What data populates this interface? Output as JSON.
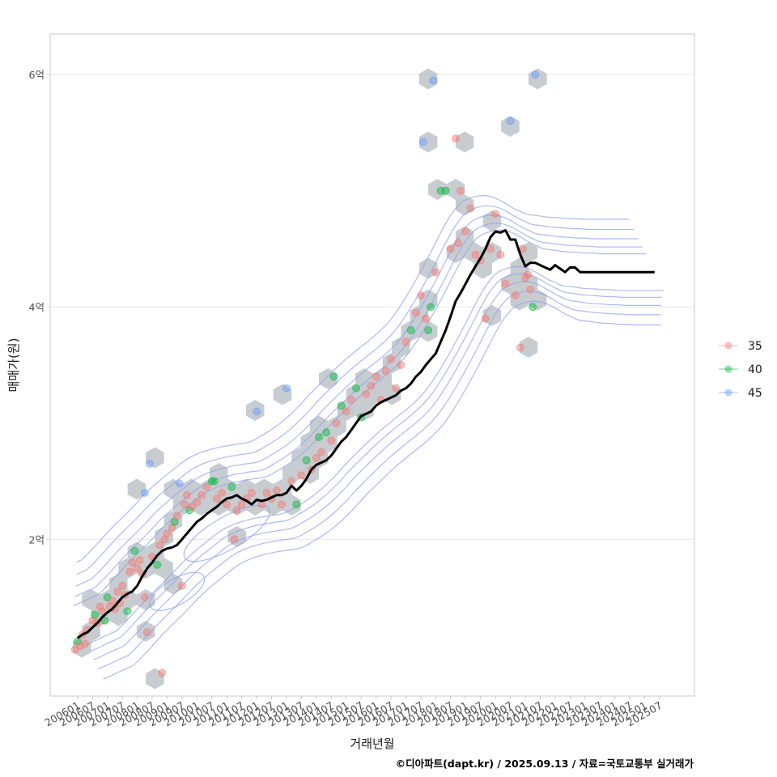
{
  "chart_data": {
    "type": "scatter",
    "title": "",
    "xlabel": "거래년월",
    "ylabel": "매매가(원)",
    "caption": "©디아파트(dapt.kr) / 2025.09.13 / 자료=국토교통부 실거래가",
    "grid": true,
    "y_unit": "억",
    "ylim": [
      0.65,
      6.35
    ],
    "yticks": [
      {
        "value": 2,
        "label": "2억"
      },
      {
        "value": 4,
        "label": "4억"
      },
      {
        "value": 6,
        "label": "6억"
      }
    ],
    "x_start": "2006-01",
    "x_end": "2025-07",
    "xlim_months": [
      -11,
      248
    ],
    "xticks": [
      "200601",
      "200607",
      "200701",
      "200707",
      "200801",
      "200807",
      "200901",
      "200907",
      "201001",
      "201007",
      "201101",
      "201107",
      "201201",
      "201207",
      "201301",
      "201307",
      "201401",
      "201407",
      "201501",
      "201507",
      "201601",
      "201607",
      "201701",
      "201707",
      "201801",
      "201807",
      "201901",
      "201907",
      "202001",
      "202007",
      "202101",
      "202107",
      "202201",
      "202207",
      "202301",
      "202307",
      "202401",
      "202407",
      "202501",
      "202507"
    ],
    "legend": {
      "position": "right",
      "title": "",
      "entries": [
        {
          "label": "35",
          "color": "#F8766D"
        },
        {
          "label": "40",
          "color": "#00BA38"
        },
        {
          "label": "45",
          "color": "#619CFF"
        }
      ]
    },
    "layers": [
      "hexbin-density",
      "2d-density-contours",
      "points-by-size",
      "moving-average-line"
    ],
    "colors": {
      "hex": "#a9b0b8",
      "contour": "#8fa3ee",
      "line": "#000000",
      "grid": "#ebebeb",
      "panel_border": "#c8c8c8"
    },
    "line_series": {
      "name": "moving-average",
      "x_months": [
        0,
        2,
        4,
        6,
        8,
        10,
        12,
        14,
        16,
        18,
        20,
        22,
        24,
        26,
        28,
        30,
        32,
        34,
        36,
        38,
        40,
        42,
        44,
        46,
        48,
        50,
        52,
        54,
        56,
        58,
        60,
        62,
        64,
        66,
        68,
        70,
        72,
        74,
        76,
        78,
        80,
        82,
        84,
        86,
        88,
        90,
        92,
        94,
        96,
        98,
        100,
        102,
        104,
        106,
        108,
        110,
        112,
        114,
        116,
        118,
        120,
        122,
        124,
        126,
        128,
        130,
        132,
        134,
        136,
        138,
        140,
        142,
        144,
        146,
        148,
        150,
        152,
        154,
        156,
        158,
        160,
        162,
        164,
        166,
        168,
        170,
        172,
        174,
        176,
        178,
        180,
        182,
        184,
        186,
        188,
        190,
        192,
        194,
        196,
        198,
        200,
        202,
        204,
        206,
        208,
        210,
        212,
        214,
        216,
        218,
        220,
        222,
        224,
        226,
        228,
        230,
        232,
        234
      ],
      "values": [
        1.15,
        1.18,
        1.2,
        1.24,
        1.28,
        1.33,
        1.37,
        1.4,
        1.45,
        1.5,
        1.53,
        1.55,
        1.6,
        1.68,
        1.75,
        1.8,
        1.86,
        1.9,
        1.92,
        1.93,
        1.95,
        2.0,
        2.05,
        2.1,
        2.15,
        2.18,
        2.22,
        2.25,
        2.28,
        2.32,
        2.35,
        2.36,
        2.38,
        2.35,
        2.33,
        2.3,
        2.34,
        2.33,
        2.34,
        2.36,
        2.38,
        2.38,
        2.4,
        2.46,
        2.42,
        2.46,
        2.52,
        2.6,
        2.64,
        2.66,
        2.68,
        2.72,
        2.78,
        2.84,
        2.88,
        2.94,
        3.0,
        3.06,
        3.08,
        3.1,
        3.15,
        3.18,
        3.2,
        3.22,
        3.24,
        3.28,
        3.3,
        3.34,
        3.4,
        3.44,
        3.5,
        3.55,
        3.6,
        3.7,
        3.8,
        3.92,
        4.05,
        4.12,
        4.2,
        4.28,
        4.35,
        4.42,
        4.5,
        4.6,
        4.65,
        4.64,
        4.66,
        4.58,
        4.58,
        4.45,
        4.35,
        4.38,
        4.38,
        4.36,
        4.34,
        4.32,
        4.36,
        4.33,
        4.3,
        4.34,
        4.34,
        4.3,
        4.3,
        4.3,
        4.3,
        4.3,
        4.3,
        4.3,
        4.3,
        4.3,
        4.3,
        4.3,
        4.3,
        4.3,
        4.3,
        4.3,
        4.3
      ]
    },
    "points": [
      {
        "m": -1,
        "v": 1.05,
        "g": "35"
      },
      {
        "m": 0,
        "v": 1.12,
        "g": "40"
      },
      {
        "m": 1,
        "v": 1.08,
        "g": "35"
      },
      {
        "m": 2,
        "v": 1.18,
        "g": "35"
      },
      {
        "m": 3,
        "v": 1.1,
        "g": "35"
      },
      {
        "m": 4,
        "v": 1.22,
        "g": "35"
      },
      {
        "m": 6,
        "v": 1.3,
        "g": "35"
      },
      {
        "m": 7,
        "v": 1.35,
        "g": "40"
      },
      {
        "m": 8,
        "v": 1.28,
        "g": "35"
      },
      {
        "m": 9,
        "v": 1.42,
        "g": "35"
      },
      {
        "m": 10,
        "v": 1.38,
        "g": "35"
      },
      {
        "m": 11,
        "v": 1.3,
        "g": "40"
      },
      {
        "m": 12,
        "v": 1.5,
        "g": "40"
      },
      {
        "m": 13,
        "v": 1.42,
        "g": "35"
      },
      {
        "m": 14,
        "v": 1.47,
        "g": "35"
      },
      {
        "m": 15,
        "v": 1.4,
        "g": "35"
      },
      {
        "m": 16,
        "v": 1.55,
        "g": "35"
      },
      {
        "m": 17,
        "v": 1.45,
        "g": "35"
      },
      {
        "m": 18,
        "v": 1.6,
        "g": "35"
      },
      {
        "m": 19,
        "v": 1.52,
        "g": "35"
      },
      {
        "m": 20,
        "v": 1.38,
        "g": "40"
      },
      {
        "m": 21,
        "v": 1.72,
        "g": "35"
      },
      {
        "m": 22,
        "v": 1.8,
        "g": "35"
      },
      {
        "m": 23,
        "v": 1.9,
        "g": "40"
      },
      {
        "m": 24,
        "v": 1.75,
        "g": "35"
      },
      {
        "m": 25,
        "v": 1.82,
        "g": "35"
      },
      {
        "m": 26,
        "v": 1.7,
        "g": "35"
      },
      {
        "m": 27,
        "v": 1.5,
        "g": "35"
      },
      {
        "m": 28,
        "v": 1.2,
        "g": "35"
      },
      {
        "m": 29,
        "v": 2.65,
        "g": "45"
      },
      {
        "m": 27,
        "v": 2.4,
        "g": "45"
      },
      {
        "m": 30,
        "v": 1.85,
        "g": "35"
      },
      {
        "m": 32,
        "v": 1.78,
        "g": "40"
      },
      {
        "m": 33,
        "v": 1.95,
        "g": "35"
      },
      {
        "m": 34,
        "v": 0.85,
        "g": "35"
      },
      {
        "m": 35,
        "v": 2.0,
        "g": "35"
      },
      {
        "m": 36,
        "v": 2.05,
        "g": "35"
      },
      {
        "m": 38,
        "v": 2.1,
        "g": "35"
      },
      {
        "m": 39,
        "v": 2.15,
        "g": "40"
      },
      {
        "m": 40,
        "v": 2.2,
        "g": "35"
      },
      {
        "m": 41,
        "v": 2.48,
        "g": "45"
      },
      {
        "m": 42,
        "v": 1.6,
        "g": "35"
      },
      {
        "m": 43,
        "v": 2.3,
        "g": "35"
      },
      {
        "m": 44,
        "v": 2.38,
        "g": "35"
      },
      {
        "m": 45,
        "v": 2.25,
        "g": "40"
      },
      {
        "m": 46,
        "v": 2.28,
        "g": "35"
      },
      {
        "m": 48,
        "v": 2.32,
        "g": "35"
      },
      {
        "m": 50,
        "v": 2.38,
        "g": "35"
      },
      {
        "m": 52,
        "v": 2.45,
        "g": "35"
      },
      {
        "m": 54,
        "v": 2.5,
        "g": "40"
      },
      {
        "m": 55,
        "v": 2.5,
        "g": "40"
      },
      {
        "m": 56,
        "v": 2.35,
        "g": "35"
      },
      {
        "m": 58,
        "v": 2.4,
        "g": "35"
      },
      {
        "m": 60,
        "v": 2.3,
        "g": "35"
      },
      {
        "m": 62,
        "v": 2.45,
        "g": "40"
      },
      {
        "m": 63,
        "v": 2.0,
        "g": "35"
      },
      {
        "m": 64,
        "v": 2.25,
        "g": "35"
      },
      {
        "m": 66,
        "v": 2.3,
        "g": "35"
      },
      {
        "m": 68,
        "v": 2.35,
        "g": "35"
      },
      {
        "m": 70,
        "v": 2.4,
        "g": "35"
      },
      {
        "m": 72,
        "v": 3.1,
        "g": "45"
      },
      {
        "m": 74,
        "v": 2.3,
        "g": "35"
      },
      {
        "m": 76,
        "v": 2.4,
        "g": "35"
      },
      {
        "m": 78,
        "v": 2.35,
        "g": "35"
      },
      {
        "m": 80,
        "v": 2.42,
        "g": "35"
      },
      {
        "m": 82,
        "v": 2.3,
        "g": "35"
      },
      {
        "m": 84,
        "v": 3.3,
        "g": "45"
      },
      {
        "m": 86,
        "v": 2.5,
        "g": "35"
      },
      {
        "m": 88,
        "v": 2.3,
        "g": "40"
      },
      {
        "m": 90,
        "v": 2.55,
        "g": "35"
      },
      {
        "m": 92,
        "v": 2.68,
        "g": "40"
      },
      {
        "m": 94,
        "v": 2.6,
        "g": "35"
      },
      {
        "m": 96,
        "v": 2.7,
        "g": "35"
      },
      {
        "m": 97,
        "v": 2.88,
        "g": "40"
      },
      {
        "m": 98,
        "v": 2.75,
        "g": "35"
      },
      {
        "m": 100,
        "v": 2.92,
        "g": "40"
      },
      {
        "m": 102,
        "v": 2.85,
        "g": "35"
      },
      {
        "m": 103,
        "v": 3.4,
        "g": "40"
      },
      {
        "m": 104,
        "v": 3.0,
        "g": "35"
      },
      {
        "m": 106,
        "v": 3.15,
        "g": "40"
      },
      {
        "m": 108,
        "v": 3.1,
        "g": "35"
      },
      {
        "m": 110,
        "v": 3.2,
        "g": "35"
      },
      {
        "m": 112,
        "v": 3.3,
        "g": "40"
      },
      {
        "m": 114,
        "v": 3.05,
        "g": "40"
      },
      {
        "m": 116,
        "v": 3.25,
        "g": "35"
      },
      {
        "m": 118,
        "v": 3.32,
        "g": "35"
      },
      {
        "m": 120,
        "v": 3.4,
        "g": "35"
      },
      {
        "m": 122,
        "v": 3.2,
        "g": "35"
      },
      {
        "m": 124,
        "v": 3.45,
        "g": "35"
      },
      {
        "m": 126,
        "v": 3.55,
        "g": "35"
      },
      {
        "m": 128,
        "v": 3.3,
        "g": "35"
      },
      {
        "m": 130,
        "v": 3.5,
        "g": "35"
      },
      {
        "m": 132,
        "v": 3.7,
        "g": "35"
      },
      {
        "m": 134,
        "v": 3.8,
        "g": "40"
      },
      {
        "m": 136,
        "v": 3.95,
        "g": "35"
      },
      {
        "m": 138,
        "v": 4.1,
        "g": "35"
      },
      {
        "m": 139,
        "v": 5.42,
        "g": "45"
      },
      {
        "m": 140,
        "v": 3.9,
        "g": "35"
      },
      {
        "m": 141,
        "v": 3.8,
        "g": "40"
      },
      {
        "m": 142,
        "v": 4.0,
        "g": "40"
      },
      {
        "m": 143,
        "v": 5.95,
        "g": "45"
      },
      {
        "m": 144,
        "v": 4.3,
        "g": "35"
      },
      {
        "m": 146,
        "v": 5.0,
        "g": "40"
      },
      {
        "m": 148,
        "v": 5.0,
        "g": "40"
      },
      {
        "m": 150,
        "v": 4.5,
        "g": "35"
      },
      {
        "m": 152,
        "v": 5.45,
        "g": "35"
      },
      {
        "m": 153,
        "v": 4.55,
        "g": "35"
      },
      {
        "m": 154,
        "v": 5.0,
        "g": "35"
      },
      {
        "m": 156,
        "v": 4.65,
        "g": "35"
      },
      {
        "m": 158,
        "v": 4.85,
        "g": "35"
      },
      {
        "m": 160,
        "v": 4.45,
        "g": "35"
      },
      {
        "m": 162,
        "v": 4.4,
        "g": "35"
      },
      {
        "m": 164,
        "v": 3.9,
        "g": "35"
      },
      {
        "m": 166,
        "v": 4.5,
        "g": "35"
      },
      {
        "m": 168,
        "v": 4.8,
        "g": "35"
      },
      {
        "m": 170,
        "v": 4.45,
        "g": "35"
      },
      {
        "m": 172,
        "v": 4.2,
        "g": "35"
      },
      {
        "m": 174,
        "v": 5.6,
        "g": "45"
      },
      {
        "m": 176,
        "v": 4.1,
        "g": "35"
      },
      {
        "m": 178,
        "v": 3.65,
        "g": "35"
      },
      {
        "m": 179,
        "v": 4.5,
        "g": "35"
      },
      {
        "m": 180,
        "v": 4.25,
        "g": "35"
      },
      {
        "m": 182,
        "v": 4.15,
        "g": "35"
      },
      {
        "m": 183,
        "v": 4.0,
        "g": "40"
      },
      {
        "m": 184,
        "v": 6.0,
        "g": "45"
      },
      {
        "m": 181,
        "v": 4.28,
        "g": "35"
      }
    ]
  }
}
